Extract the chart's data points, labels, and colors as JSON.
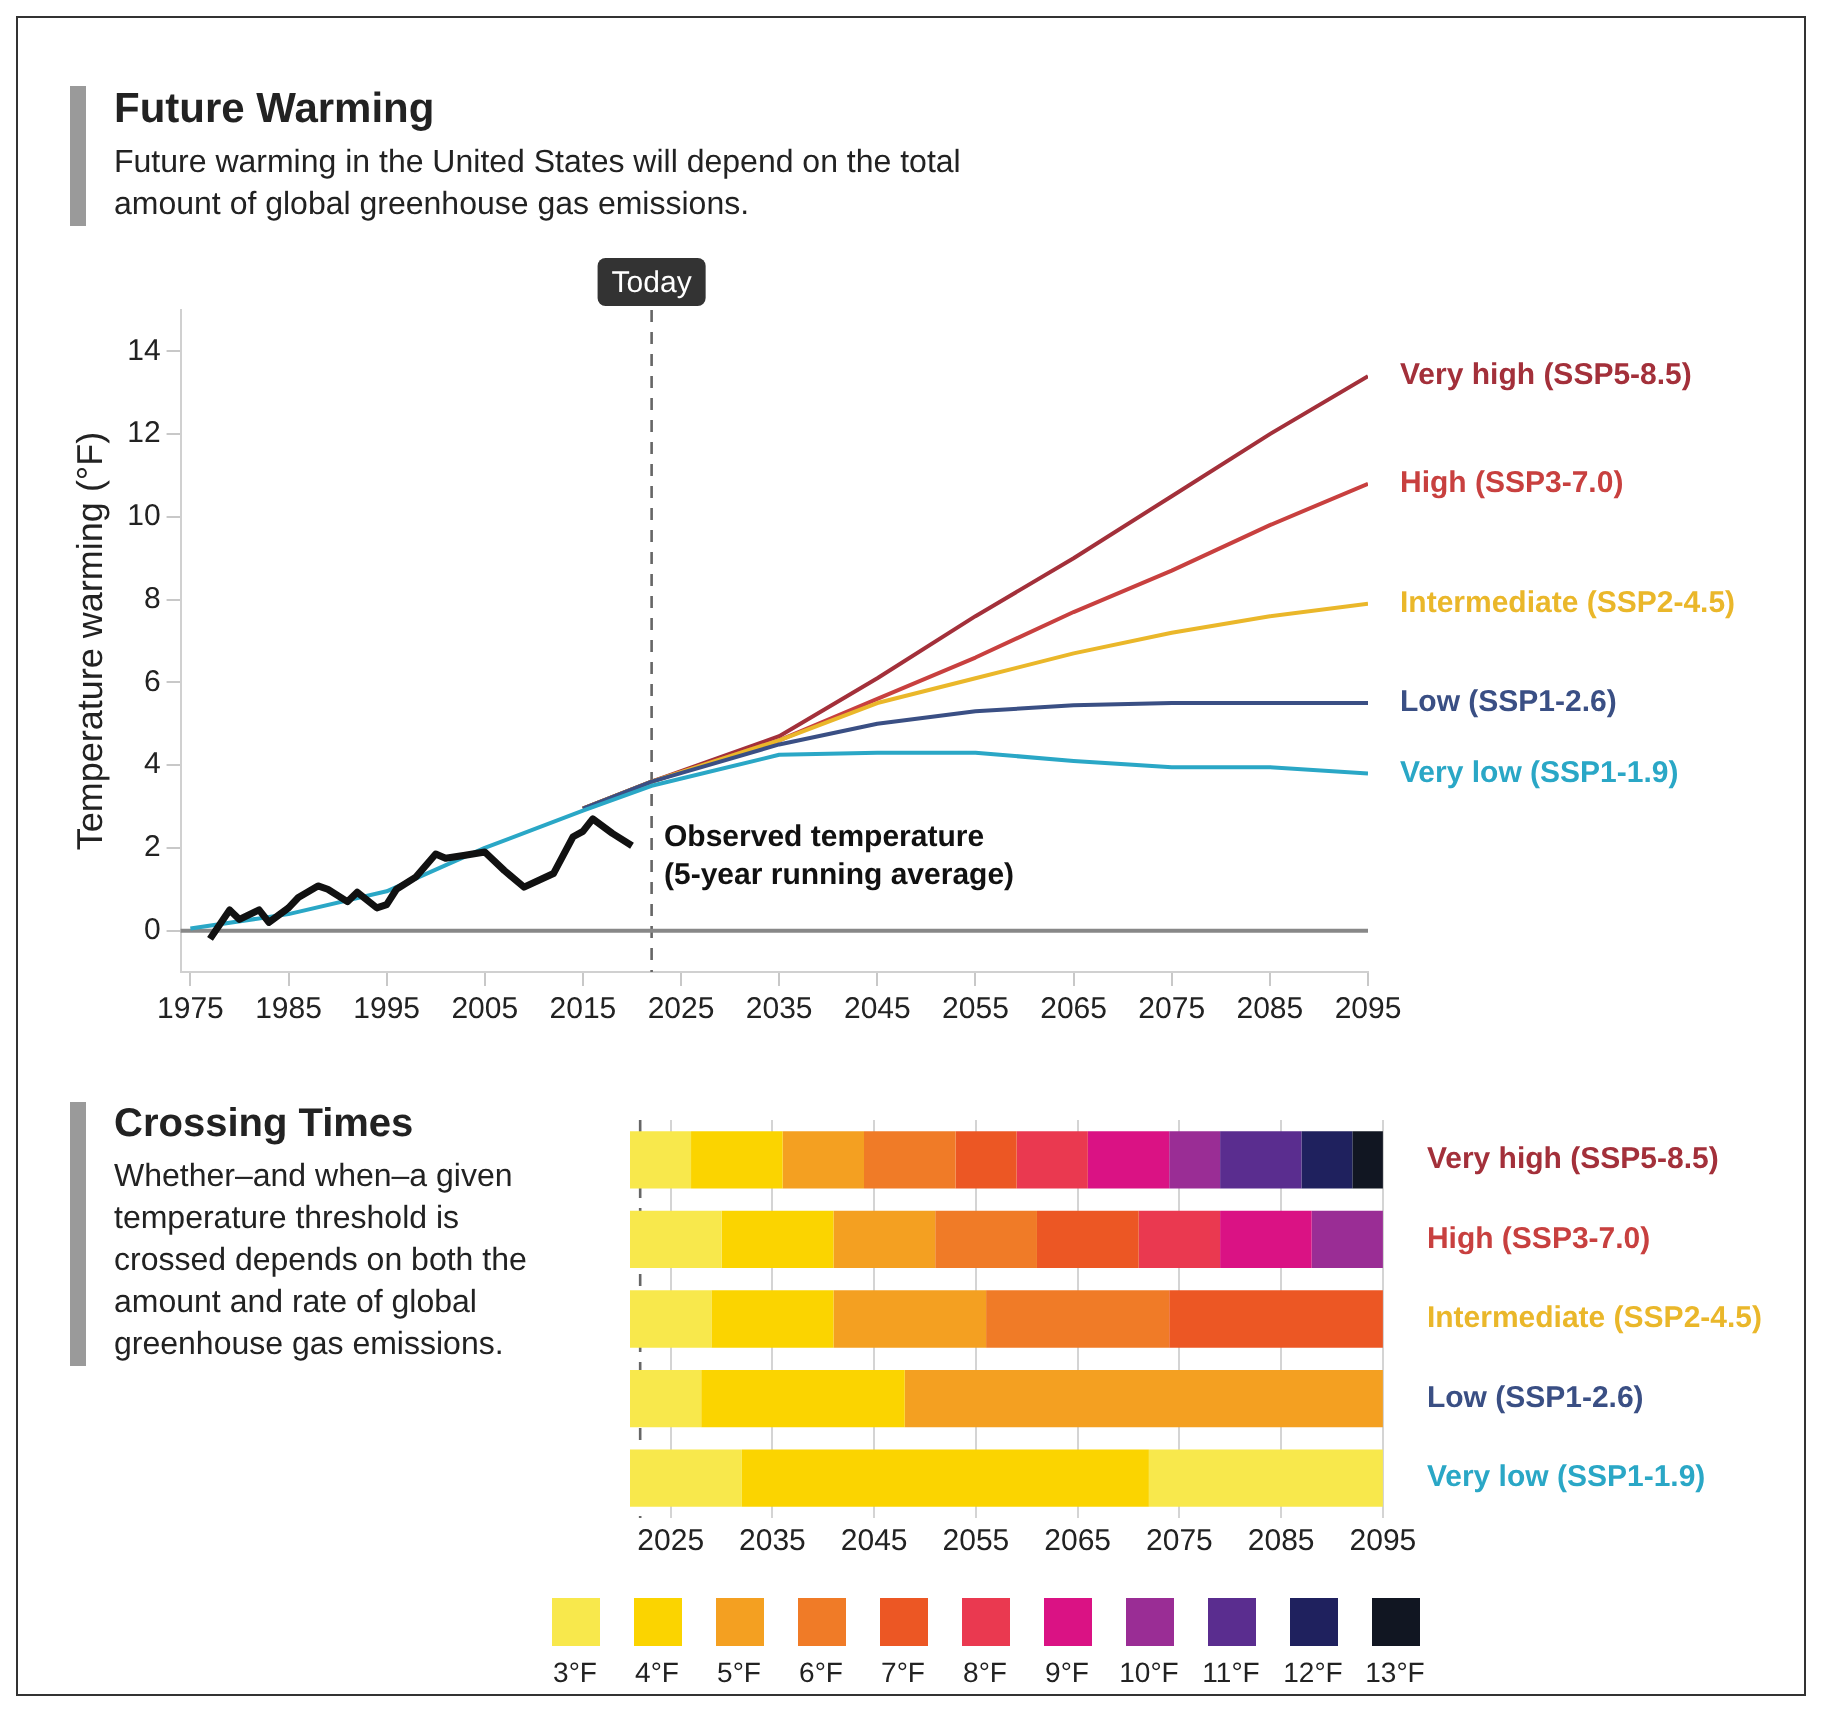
{
  "chart_data": [
    {
      "type": "line",
      "title": "Future Warming",
      "subtitle": "Future warming in the United States will depend on the total amount of global greenhouse gas emissions.",
      "ylabel": "Temperature warming (°F)",
      "xlim": [
        1974,
        2095
      ],
      "xticks": [
        1975,
        1985,
        1995,
        2005,
        2015,
        2025,
        2035,
        2045,
        2055,
        2065,
        2075,
        2085,
        2095
      ],
      "ylim": [
        -1,
        15
      ],
      "yticks": [
        0,
        2,
        4,
        6,
        8,
        10,
        12,
        14
      ],
      "marker": "none",
      "line_style": "solid",
      "legend": false,
      "series": [
        {
          "name": "Very high (SSP5-8.5)",
          "color": "#a3303a",
          "x": [
            2015,
            2022,
            2035,
            2045,
            2055,
            2065,
            2075,
            2085,
            2095
          ],
          "values": [
            2.95,
            3.6,
            4.7,
            6.1,
            7.6,
            9.0,
            10.5,
            12.0,
            13.4
          ]
        },
        {
          "name": "High (SSP3-7.0)",
          "color": "#c8403f",
          "x": [
            2015,
            2022,
            2035,
            2045,
            2055,
            2065,
            2075,
            2085,
            2095
          ],
          "values": [
            2.95,
            3.6,
            4.6,
            5.6,
            6.6,
            7.7,
            8.7,
            9.8,
            10.8
          ]
        },
        {
          "name": "Intermediate (SSP2-4.5)",
          "color": "#eab72a",
          "x": [
            2015,
            2022,
            2035,
            2045,
            2055,
            2065,
            2075,
            2085,
            2095
          ],
          "values": [
            2.95,
            3.6,
            4.6,
            5.5,
            6.1,
            6.7,
            7.2,
            7.6,
            7.9
          ]
        },
        {
          "name": "Low (SSP1-2.6)",
          "color": "#3a4f84",
          "x": [
            2015,
            2022,
            2035,
            2045,
            2055,
            2065,
            2075,
            2085,
            2095
          ],
          "values": [
            2.95,
            3.6,
            4.5,
            5.0,
            5.3,
            5.45,
            5.5,
            5.5,
            5.5
          ]
        },
        {
          "name": "Very low (SSP1-1.9)",
          "color": "#2aa7c6",
          "x": [
            1975,
            1985,
            1995,
            2005,
            2015,
            2022,
            2035,
            2045,
            2055,
            2065,
            2075,
            2085,
            2095
          ],
          "values": [
            0.05,
            0.4,
            0.95,
            2.0,
            2.9,
            3.5,
            4.25,
            4.3,
            4.3,
            4.1,
            3.95,
            3.95,
            3.8
          ]
        },
        {
          "name": "Observed temperature (5-year running average)",
          "color": "#111111",
          "x": [
            1977,
            1979,
            1980,
            1982,
            1983,
            1985,
            1986,
            1988,
            1989,
            1991,
            1992,
            1994,
            1995,
            1996,
            1998,
            2000,
            2001,
            2003,
            2005,
            2007,
            2009,
            2012,
            2014,
            2015,
            2016,
            2018,
            2020
          ],
          "values": [
            -0.2,
            0.5,
            0.27,
            0.5,
            0.2,
            0.55,
            0.8,
            1.08,
            1.0,
            0.7,
            0.93,
            0.55,
            0.63,
            1.0,
            1.3,
            1.85,
            1.75,
            1.82,
            1.9,
            1.45,
            1.05,
            1.38,
            2.27,
            2.4,
            2.7,
            2.35,
            2.05
          ]
        }
      ],
      "ref_lines": [
        {
          "axis": "x",
          "value": 2022,
          "label": "Today",
          "line_style": "dashed",
          "color": "#666666"
        },
        {
          "axis": "y",
          "value": 0,
          "color": "#888888"
        }
      ]
    },
    {
      "type": "bar",
      "orientation": "horizontal",
      "title": "Crossing Times",
      "subtitle": "Whether–and when–a given temperature threshold is crossed depends on both the amount and rate of global greenhouse gas emissions.",
      "categories": [
        "Very high (SSP5-8.5)",
        "High (SSP3-7.0)",
        "Intermediate (SSP2-4.5)",
        "Low (SSP1-2.6)",
        "Very low (SSP1-1.9)"
      ],
      "xlim": [
        2021,
        2095
      ],
      "xticks": [
        2025,
        2035,
        2045,
        2055,
        2065,
        2075,
        2085,
        2095
      ],
      "grid": "x",
      "legend": "bottom",
      "series": [
        {
          "name": "3°F",
          "color": "#f8e84c",
          "base": [
            2021,
            2021,
            2021,
            2021,
            2021
          ],
          "values": [
            6,
            9,
            8,
            7,
            11
          ]
        },
        {
          "name": "4°F",
          "color": "#fbd400",
          "base": [
            2027,
            2030,
            2029,
            2028,
            2032
          ],
          "values": [
            9,
            11,
            12,
            20,
            40
          ]
        },
        {
          "name": "5°F",
          "color": "#f4a021",
          "base": [
            2036,
            2041,
            2041,
            2048,
            null
          ],
          "values": [
            8,
            10,
            15,
            47,
            null
          ]
        },
        {
          "name": "6°F",
          "color": "#f07b27",
          "base": [
            2044,
            2051,
            2056,
            null,
            null
          ],
          "values": [
            9,
            10,
            18,
            null,
            null
          ]
        },
        {
          "name": "7°F",
          "color": "#ec5724",
          "base": [
            2053,
            2061,
            2074,
            null,
            null
          ],
          "values": [
            6,
            10,
            21,
            null,
            null
          ]
        },
        {
          "name": "8°F",
          "color": "#ea3950",
          "base": [
            2059,
            2071,
            null,
            null,
            null
          ],
          "values": [
            7,
            8,
            null,
            null,
            null
          ]
        },
        {
          "name": "9°F",
          "color": "#da1284",
          "base": [
            2066,
            2079,
            null,
            null,
            null
          ],
          "values": [
            8,
            9,
            null,
            null,
            null
          ]
        },
        {
          "name": "10°F",
          "color": "#9a2d95",
          "base": [
            2074,
            2088,
            null,
            null,
            null
          ],
          "values": [
            5,
            7,
            null,
            null,
            null
          ]
        },
        {
          "name": "11°F",
          "color": "#5a2d8f",
          "base": [
            2079,
            null,
            null,
            null,
            null
          ],
          "values": [
            8,
            null,
            null,
            null,
            null
          ]
        },
        {
          "name": "12°F",
          "color": "#1f215e",
          "base": [
            2087,
            null,
            null,
            null,
            null
          ],
          "values": [
            5,
            null,
            null,
            null,
            null
          ]
        },
        {
          "name": "13°F",
          "color": "#111622",
          "base": [
            2092,
            null,
            null,
            null,
            null
          ],
          "values": [
            3,
            null,
            null,
            null,
            null
          ]
        },
        {
          "color": "#f8e84c",
          "base": [
            null,
            null,
            null,
            null,
            2072
          ],
          "values": [
            null,
            null,
            null,
            null,
            23
          ]
        }
      ],
      "ref_lines": [
        {
          "axis": "x",
          "value": 2022,
          "line_style": "dashed",
          "color": "#666666"
        }
      ]
    }
  ]
}
